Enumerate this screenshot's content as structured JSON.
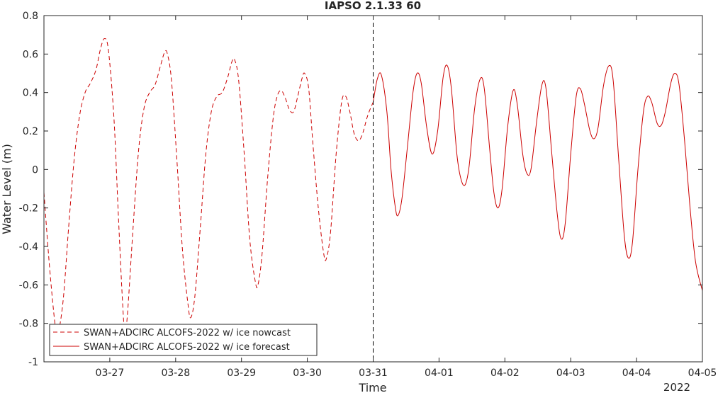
{
  "chart_data": {
    "type": "line",
    "title": "IAPSO 2.1.33 60",
    "xlabel": "Time",
    "ylabel": "Water Level (m)",
    "year_label": "2022",
    "xlim": [
      "2022-03-26 00:00",
      "2022-04-05 00:00"
    ],
    "ylim": [
      -1,
      0.8
    ],
    "yticks": [
      -1,
      -0.8,
      -0.6,
      -0.4,
      -0.2,
      0,
      0.2,
      0.4,
      0.6,
      0.8
    ],
    "ytick_labels": [
      "-1",
      "-0.8",
      "-0.6",
      "-0.4",
      "-0.2",
      "0",
      "0.2",
      "0.4",
      "0.6",
      "0.8"
    ],
    "xticks": [
      "2022-03-27",
      "2022-03-28",
      "2022-03-29",
      "2022-03-30",
      "2022-03-31",
      "2022-04-01",
      "2022-04-02",
      "2022-04-03",
      "2022-04-04",
      "2022-04-05"
    ],
    "xtick_labels": [
      "03-27",
      "03-28",
      "03-29",
      "03-30",
      "03-31",
      "04-01",
      "04-02",
      "04-03",
      "04-04",
      "04-05"
    ],
    "grid": false,
    "legend_position": "bottom-left",
    "nowcast_end": "2022-03-31 00:00",
    "colors": {
      "series": "#cc0000",
      "axis": "#262626",
      "divider": "#000000"
    },
    "series": [
      {
        "name": "SWAN+ADCIRC ALCOFS-2022 w/ ice nowcast",
        "style": "dashed",
        "points": [
          [
            "2022-03-26 00:00",
            -0.12
          ],
          [
            "2022-03-26 02:00",
            -0.5
          ],
          [
            "2022-03-26 04:00",
            -0.8
          ],
          [
            "2022-03-26 05:00",
            -0.86
          ],
          [
            "2022-03-26 07:00",
            -0.68
          ],
          [
            "2022-03-26 09:00",
            -0.3
          ],
          [
            "2022-03-26 11:00",
            0.05
          ],
          [
            "2022-03-26 13:00",
            0.28
          ],
          [
            "2022-03-26 15:00",
            0.4
          ],
          [
            "2022-03-26 17:00",
            0.45
          ],
          [
            "2022-03-26 19:00",
            0.52
          ],
          [
            "2022-03-26 20:30",
            0.62
          ],
          [
            "2022-03-26 22:00",
            0.68
          ],
          [
            "2022-03-26 23:30",
            0.62
          ],
          [
            "2022-03-27 01:30",
            0.27
          ],
          [
            "2022-03-27 03:00",
            -0.2
          ],
          [
            "2022-03-27 04:30",
            -0.65
          ],
          [
            "2022-03-27 05:30",
            -0.85
          ],
          [
            "2022-03-27 06:30",
            -0.74
          ],
          [
            "2022-03-27 08:30",
            -0.3
          ],
          [
            "2022-03-27 10:30",
            0.1
          ],
          [
            "2022-03-27 12:30",
            0.32
          ],
          [
            "2022-03-27 14:30",
            0.4
          ],
          [
            "2022-03-27 16:30",
            0.44
          ],
          [
            "2022-03-27 18:30",
            0.54
          ],
          [
            "2022-03-27 20:00",
            0.61
          ],
          [
            "2022-03-27 21:00",
            0.6
          ],
          [
            "2022-03-27 22:30",
            0.46
          ],
          [
            "2022-03-28 00:30",
            0.04
          ],
          [
            "2022-03-28 02:30",
            -0.42
          ],
          [
            "2022-03-28 04:30",
            -0.7
          ],
          [
            "2022-03-28 05:30",
            -0.77
          ],
          [
            "2022-03-28 07:00",
            -0.66
          ],
          [
            "2022-03-28 09:00",
            -0.3
          ],
          [
            "2022-03-28 11:00",
            0.08
          ],
          [
            "2022-03-28 13:00",
            0.3
          ],
          [
            "2022-03-28 15:00",
            0.38
          ],
          [
            "2022-03-28 17:00",
            0.4
          ],
          [
            "2022-03-28 19:00",
            0.48
          ],
          [
            "2022-03-28 20:30",
            0.56
          ],
          [
            "2022-03-28 21:30",
            0.57
          ],
          [
            "2022-03-28 23:00",
            0.46
          ],
          [
            "2022-03-29 01:00",
            0.08
          ],
          [
            "2022-03-29 03:00",
            -0.36
          ],
          [
            "2022-03-29 05:00",
            -0.58
          ],
          [
            "2022-03-29 06:00",
            -0.6
          ],
          [
            "2022-03-29 07:30",
            -0.44
          ],
          [
            "2022-03-29 09:30",
            -0.05
          ],
          [
            "2022-03-29 11:30",
            0.26
          ],
          [
            "2022-03-29 13:00",
            0.38
          ],
          [
            "2022-03-29 14:30",
            0.41
          ],
          [
            "2022-03-29 16:00",
            0.37
          ],
          [
            "2022-03-29 17:30",
            0.31
          ],
          [
            "2022-03-29 19:00",
            0.3
          ],
          [
            "2022-03-29 20:30",
            0.38
          ],
          [
            "2022-03-29 22:00",
            0.47
          ],
          [
            "2022-03-29 23:00",
            0.5
          ],
          [
            "2022-03-30 00:30",
            0.42
          ],
          [
            "2022-03-30 02:00",
            0.14
          ],
          [
            "2022-03-30 04:00",
            -0.2
          ],
          [
            "2022-03-30 06:00",
            -0.44
          ],
          [
            "2022-03-30 07:00",
            -0.46
          ],
          [
            "2022-03-30 08:30",
            -0.32
          ],
          [
            "2022-03-30 10:30",
            0.08
          ],
          [
            "2022-03-30 12:30",
            0.35
          ],
          [
            "2022-03-30 14:00",
            0.38
          ],
          [
            "2022-03-30 15:30",
            0.3
          ],
          [
            "2022-03-30 17:00",
            0.19
          ],
          [
            "2022-03-30 18:30",
            0.15
          ],
          [
            "2022-03-30 20:00",
            0.18
          ],
          [
            "2022-03-30 22:00",
            0.28
          ],
          [
            "2022-03-31 00:00",
            0.35
          ]
        ]
      },
      {
        "name": "SWAN+ADCIRC ALCOFS-2022 w/ ice forecast",
        "style": "solid",
        "points": [
          [
            "2022-03-31 00:00",
            0.35
          ],
          [
            "2022-03-31 01:30",
            0.47
          ],
          [
            "2022-03-31 03:00",
            0.49
          ],
          [
            "2022-03-31 05:00",
            0.3
          ],
          [
            "2022-03-31 06:30",
            0.0
          ],
          [
            "2022-03-31 08:00",
            -0.19
          ],
          [
            "2022-03-31 09:00",
            -0.24
          ],
          [
            "2022-03-31 10:30",
            -0.15
          ],
          [
            "2022-03-31 12:30",
            0.12
          ],
          [
            "2022-03-31 14:30",
            0.4
          ],
          [
            "2022-03-31 16:00",
            0.5
          ],
          [
            "2022-03-31 17:30",
            0.45
          ],
          [
            "2022-03-31 19:30",
            0.22
          ],
          [
            "2022-03-31 21:30",
            0.08
          ],
          [
            "2022-03-31 23:30",
            0.2
          ],
          [
            "2022-04-01 01:30",
            0.48
          ],
          [
            "2022-04-01 03:00",
            0.54
          ],
          [
            "2022-04-01 04:30",
            0.42
          ],
          [
            "2022-04-01 06:30",
            0.08
          ],
          [
            "2022-04-01 08:00",
            -0.05
          ],
          [
            "2022-04-01 09:30",
            -0.08
          ],
          [
            "2022-04-01 11:00",
            0.02
          ],
          [
            "2022-04-01 13:00",
            0.32
          ],
          [
            "2022-04-01 15:00",
            0.47
          ],
          [
            "2022-04-01 16:30",
            0.42
          ],
          [
            "2022-04-01 18:30",
            0.1
          ],
          [
            "2022-04-01 20:00",
            -0.12
          ],
          [
            "2022-04-01 21:30",
            -0.2
          ],
          [
            "2022-04-01 23:00",
            -0.1
          ],
          [
            "2022-04-02 01:00",
            0.22
          ],
          [
            "2022-04-02 03:00",
            0.41
          ],
          [
            "2022-04-02 04:30",
            0.34
          ],
          [
            "2022-04-02 06:30",
            0.08
          ],
          [
            "2022-04-02 08:00",
            -0.02
          ],
          [
            "2022-04-02 09:30",
            0.0
          ],
          [
            "2022-04-02 11:30",
            0.24
          ],
          [
            "2022-04-02 13:30",
            0.44
          ],
          [
            "2022-04-02 15:00",
            0.42
          ],
          [
            "2022-04-02 17:00",
            0.1
          ],
          [
            "2022-04-02 19:00",
            -0.22
          ],
          [
            "2022-04-02 20:30",
            -0.36
          ],
          [
            "2022-04-02 22:00",
            -0.28
          ],
          [
            "2022-04-03 00:00",
            0.08
          ],
          [
            "2022-04-03 02:00",
            0.38
          ],
          [
            "2022-04-03 03:30",
            0.42
          ],
          [
            "2022-04-03 05:00",
            0.34
          ],
          [
            "2022-04-03 07:00",
            0.2
          ],
          [
            "2022-04-03 08:30",
            0.16
          ],
          [
            "2022-04-03 10:00",
            0.22
          ],
          [
            "2022-04-03 12:00",
            0.44
          ],
          [
            "2022-04-03 14:00",
            0.54
          ],
          [
            "2022-04-03 15:30",
            0.46
          ],
          [
            "2022-04-03 17:30",
            0.05
          ],
          [
            "2022-04-03 19:30",
            -0.34
          ],
          [
            "2022-04-03 21:00",
            -0.46
          ],
          [
            "2022-04-03 22:30",
            -0.38
          ],
          [
            "2022-04-04 00:30",
            0.0
          ],
          [
            "2022-04-04 02:30",
            0.3
          ],
          [
            "2022-04-04 04:00",
            0.38
          ],
          [
            "2022-04-04 05:30",
            0.35
          ],
          [
            "2022-04-04 07:30",
            0.24
          ],
          [
            "2022-04-04 09:00",
            0.23
          ],
          [
            "2022-04-04 10:30",
            0.3
          ],
          [
            "2022-04-04 12:30",
            0.45
          ],
          [
            "2022-04-04 14:00",
            0.5
          ],
          [
            "2022-04-04 15:30",
            0.44
          ],
          [
            "2022-04-04 17:30",
            0.15
          ],
          [
            "2022-04-04 19:30",
            -0.2
          ],
          [
            "2022-04-04 21:30",
            -0.48
          ],
          [
            "2022-04-05 00:00",
            -0.63
          ]
        ]
      }
    ]
  }
}
